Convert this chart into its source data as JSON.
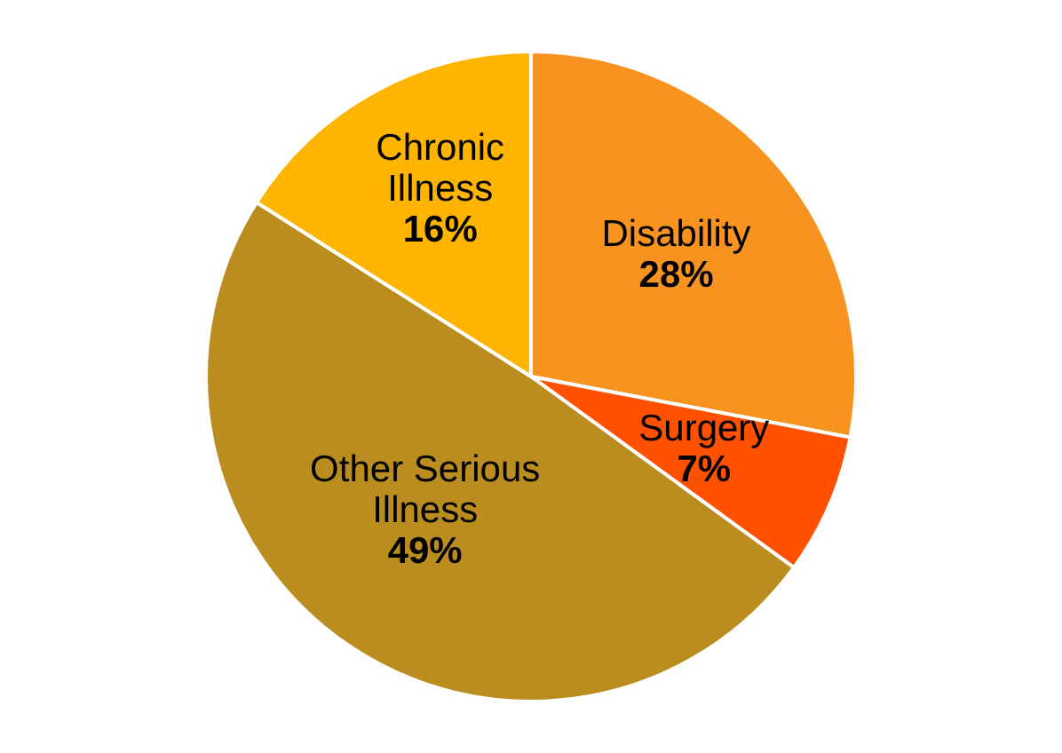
{
  "chart_data": {
    "type": "pie",
    "categories": [
      "Disability",
      "Surgery",
      "Other Serious Illness",
      "Chronic Illness"
    ],
    "values": [
      28,
      7,
      49,
      16
    ],
    "colors": [
      "#f7931e",
      "#ff5100",
      "#bb8d1f",
      "#ffb400"
    ],
    "value_labels": [
      "28%",
      "7%",
      "49%",
      "16%"
    ]
  }
}
